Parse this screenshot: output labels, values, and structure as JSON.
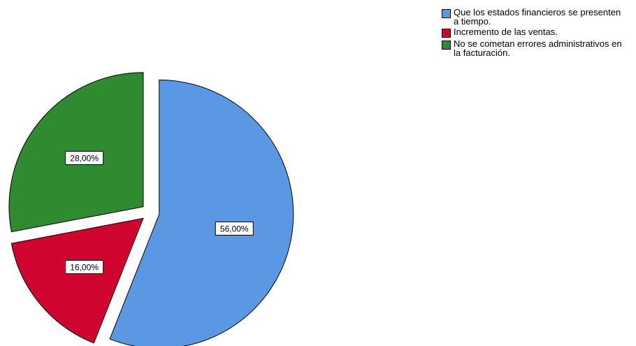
{
  "chart_data": {
    "type": "pie",
    "slices": [
      {
        "label": "Que los estados financieros se presenten a tiempo.",
        "value": 56.0,
        "data_label": "56,00%",
        "color": "#5a98e4"
      },
      {
        "label": "Incremento de las ventas.",
        "value": 16.0,
        "data_label": "16,00%",
        "color": "#d0052f"
      },
      {
        "label": "No se cometan errores administrativos en la facturación.",
        "value": 28.0,
        "data_label": "28,00%",
        "color": "#2e8b2f"
      }
    ],
    "exploded": true,
    "legend_position": "top-right"
  }
}
